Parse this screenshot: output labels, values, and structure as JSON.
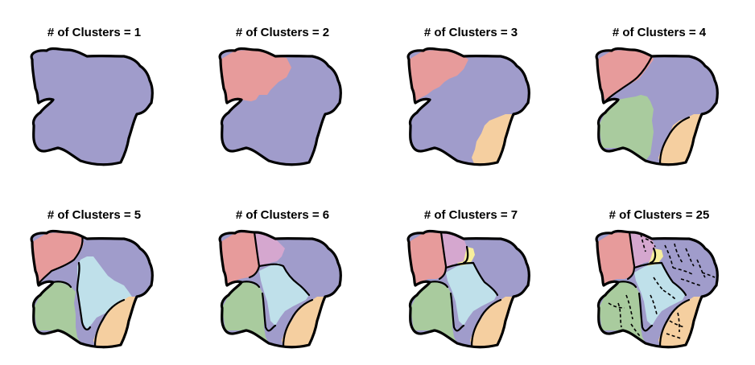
{
  "panels": [
    {
      "title": "# of Clusters = 1",
      "k": 1
    },
    {
      "title": "# of Clusters = 2",
      "k": 2
    },
    {
      "title": "# of Clusters = 3",
      "k": 3
    },
    {
      "title": "# of Clusters = 4",
      "k": 4
    },
    {
      "title": "# of Clusters = 5",
      "k": 5
    },
    {
      "title": "# of Clusters = 6",
      "k": 6
    },
    {
      "title": "# of Clusters = 7",
      "k": 7
    },
    {
      "title": "# of Clusters = 25",
      "k": 25
    }
  ],
  "colors": {
    "purple": "#a09ccb",
    "red": "#e79b9b",
    "orange": "#f5cfa0",
    "green": "#a9cb9e",
    "blue": "#bfe0ea",
    "pink": "#d5a7cf",
    "yellow": "#f7ee9c",
    "outline": "#000000"
  }
}
